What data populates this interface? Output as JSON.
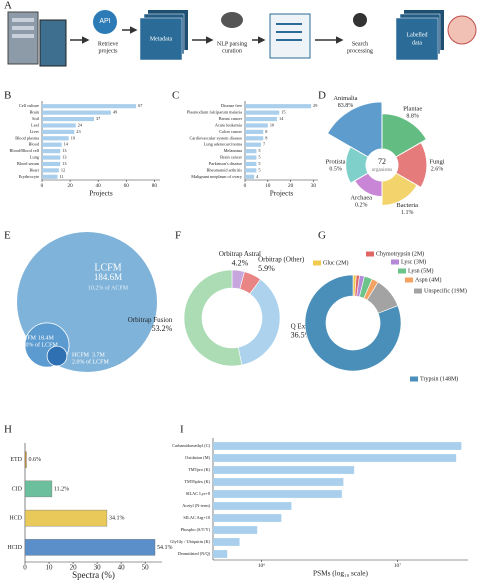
{
  "panel_labels": [
    "A",
    "B",
    "C",
    "D",
    "E",
    "F",
    "G",
    "H",
    "I"
  ],
  "diagram": {
    "api": "API",
    "steps": [
      [
        "Retrieve",
        "projects"
      ],
      [
        "Metadata"
      ],
      [
        "NLP parsing",
        "curation"
      ],
      [
        "Search",
        "processing"
      ],
      [
        "Labelled",
        "data"
      ]
    ]
  },
  "chart_data": [
    {
      "type": "barh",
      "categories": [
        "Cell culture",
        "Brain",
        "Soil",
        "Leaf",
        "Liver",
        "Blood plasma",
        "Blood",
        "Blood/Blood cell",
        "Lung",
        "Blood serum",
        "Heart",
        "Erythrocyte"
      ],
      "values": [
        67,
        49,
        37,
        24,
        23,
        19,
        14,
        13,
        13,
        13,
        12,
        11
      ],
      "color": "#a9cfec",
      "xlim": [
        0,
        84
      ],
      "xticks": [
        0,
        20,
        40,
        60,
        80
      ],
      "xlabel": "Projects",
      "show_values": true
    },
    {
      "type": "barh",
      "categories": [
        "Disease free",
        "Plasmodium falciparum malaria",
        "Breast cancer",
        "Acute leukemia",
        "Colon cancer",
        "Cardiovascular system disease",
        "Lung adenocarcinoma",
        "Melanoma",
        "Brain cancer",
        "Parkinson's disease",
        "Rheumatoid arthritis",
        "Malignant neoplasm of ovary"
      ],
      "values": [
        29,
        15,
        14,
        10,
        8,
        8,
        7,
        5,
        5,
        5,
        5,
        4
      ],
      "color": "#a9cfec",
      "xlim": [
        0,
        32
      ],
      "xticks": [
        0,
        10,
        20,
        30
      ],
      "xlabel": "Projects",
      "show_values": true
    },
    {
      "type": "rose",
      "categories": [
        "Animalia",
        "Plantae",
        "Fungi",
        "Bacteria",
        "Archaea",
        "Protista"
      ],
      "values": [
        83.8,
        8.8,
        2.6,
        1.1,
        0.2,
        0.5
      ],
      "value_labels": [
        "83.8%",
        "8.8%",
        "2.6%",
        "1.1%",
        "0.2%",
        "0.5%"
      ],
      "colors": [
        "#5d9ccc",
        "#63bd82",
        "#e57b7b",
        "#f3d36b",
        "#c986d6",
        "#7fcfcb"
      ],
      "center_value": 72,
      "center_text": "organisms"
    },
    {
      "type": "nested_circles",
      "categories": [
        "LCFM",
        "MCFM",
        "HCFM"
      ],
      "values": [
        184.6,
        18.4,
        3.7
      ],
      "value_labels": [
        "184.6M",
        "18.4M",
        "3.7M"
      ],
      "share_labels": [
        "10.2% of ACFM",
        "10.0% of LCFM",
        "2.0% of LCFM"
      ],
      "colors": [
        "#7fb3d9",
        "#5c9bd0",
        "#2f70b2"
      ]
    },
    {
      "type": "donut",
      "categories": [
        "Orbitrap Astral",
        "Orbitrap (Other)",
        "Q Exactive",
        "Orbitrap Fusion"
      ],
      "values": [
        4.2,
        5.9,
        36.5,
        53.2
      ],
      "value_labels": [
        "4.2%",
        "5.9%",
        "36.5%",
        "53.2%"
      ],
      "colors": [
        "#c6a6dc",
        "#e98585",
        "#acd2ee",
        "#abdcb4"
      ]
    },
    {
      "type": "donut",
      "categories": [
        "Gluc (2M)",
        "Chymotrypsin (2M)",
        "Lysc (3M)",
        "Lysn (5M)",
        "Aspn (4M)",
        "Unspecific (19M)",
        "Trypsin (148M)"
      ],
      "values": [
        2,
        2,
        3,
        5,
        4,
        19,
        148
      ],
      "colors": [
        "#f0c94f",
        "#e06666",
        "#b48ad8",
        "#6cc48a",
        "#f4a261",
        "#a3a3a3",
        "#4a8fb9"
      ]
    },
    {
      "type": "barh",
      "categories": [
        "ETD",
        "CID",
        "HCD",
        "HCID"
      ],
      "values": [
        0.6,
        11.2,
        34.1,
        54.1
      ],
      "value_labels": [
        "0.6%",
        "11.2%",
        "34.1%",
        "54.1%"
      ],
      "colors": [
        "#c98a2e",
        "#6cbf9c",
        "#e8c95a",
        "#5b8fc9"
      ],
      "xlim": [
        0,
        57
      ],
      "xticks": [
        0,
        10,
        20,
        30,
        40,
        50
      ],
      "xlabel": "Spectra (%)",
      "show_values": true
    },
    {
      "type": "barh",
      "categories": [
        "Carbamidomethyl (C)",
        "Oxidation (M)",
        "TMTpro (K)",
        "TMT6plex (K)",
        "SILAC Lys+8",
        "Acetyl (N-term)",
        "SILAC Arg+10",
        "Phospho (S/T/Y)",
        "GlyGly / Ubiquitin (K)",
        "Deamidated (N/Q)"
      ],
      "values": [
        29500000,
        27000000,
        4800000,
        4000000,
        3900000,
        1660000,
        1400000,
        930000,
        690000,
        560000
      ],
      "color": "#a9cfec",
      "xlim": [
        440000,
        33000000
      ],
      "log_x": true,
      "xticks": [
        {
          "value": 1000000,
          "label": "10⁶"
        },
        {
          "value": 10000000,
          "label": "10⁷"
        }
      ],
      "xlabel": "PSMs (log₁₀ scale)",
      "show_values": false
    }
  ]
}
